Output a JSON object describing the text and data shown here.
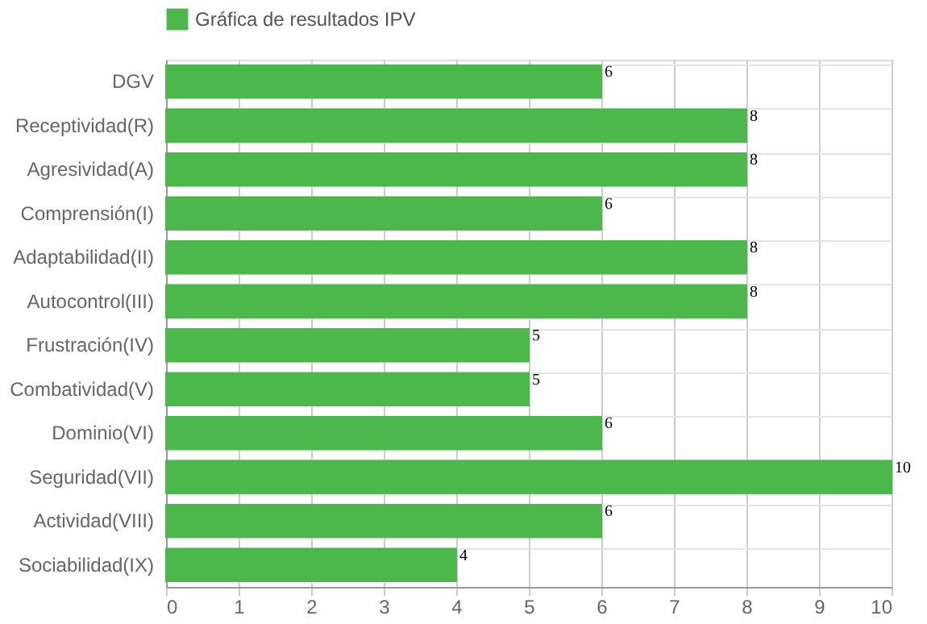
{
  "chart_data": {
    "type": "bar",
    "orientation": "horizontal",
    "categories": [
      "DGV",
      "Receptividad(R)",
      "Agresividad(A)",
      "Comprensión(I)",
      "Adaptabilidad(II)",
      "Autocontrol(III)",
      "Frustración(IV)",
      "Combatividad(V)",
      "Dominio(VI)",
      "Seguridad(VII)",
      "Actividad(VIII)",
      "Sociabilidad(IX)"
    ],
    "series": [
      {
        "name": "Gráfica de resultados IPV",
        "color": "#4cb84c",
        "values": [
          6,
          8,
          8,
          6,
          8,
          8,
          5,
          5,
          6,
          10,
          6,
          4
        ]
      }
    ],
    "xlim": [
      0,
      10
    ],
    "xticks": [
      0,
      1,
      2,
      3,
      4,
      5,
      6,
      7,
      8,
      9,
      10
    ],
    "grid": true,
    "legend": "top",
    "data_labels": true
  }
}
